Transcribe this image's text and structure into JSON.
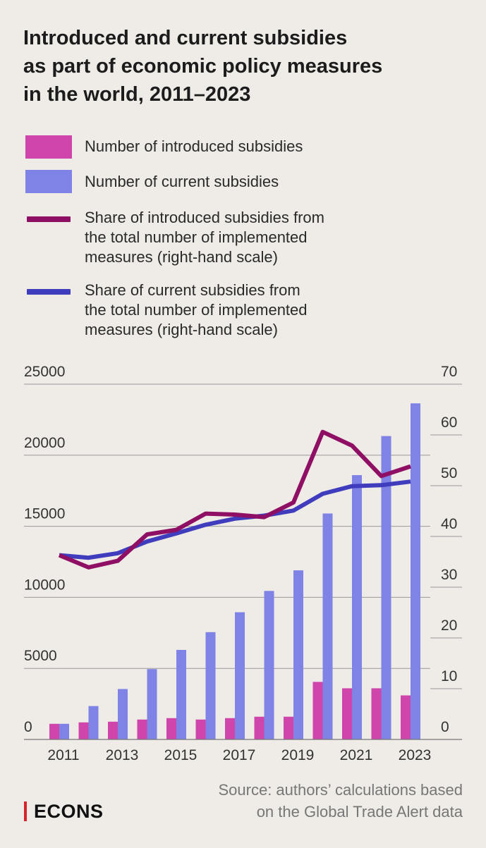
{
  "title": "Introduced and current subsidies as part of economic policy measures in the world, 2011–2023",
  "legend": [
    {
      "label": "Number of introduced subsidies",
      "color": "#cf45ab",
      "kind": "bar"
    },
    {
      "label": "Number of current subsidies",
      "color": "#7f83e6",
      "kind": "bar"
    },
    {
      "label": "Share of introduced subsidies from the total number of implemented measures (right-hand scale)",
      "color": "#8e0f63",
      "kind": "line"
    },
    {
      "label": "Share of current subsidies from the total number of implemented measures (right-hand scale)",
      "color": "#3f3dbd",
      "kind": "line"
    }
  ],
  "source": "Source: authors’ calculations based on the Global Trade Alert data",
  "logo": "ECONS",
  "chart_data": {
    "type": "bar",
    "categories": [
      "2011",
      "2012",
      "2013",
      "2014",
      "2015",
      "2016",
      "2017",
      "2018",
      "2019",
      "2020",
      "2021",
      "2022",
      "2023"
    ],
    "x_tick_labels": [
      "2011",
      "2013",
      "2015",
      "2017",
      "2019",
      "2021",
      "2023"
    ],
    "series": [
      {
        "name": "Number of introduced subsidies",
        "type": "bar",
        "axis": "left",
        "color": "#cf45ab",
        "values": [
          1100,
          1200,
          1250,
          1400,
          1500,
          1400,
          1500,
          1600,
          1600,
          4050,
          3600,
          3600,
          3100
        ]
      },
      {
        "name": "Number of current subsidies",
        "type": "bar",
        "axis": "left",
        "color": "#7f83e6",
        "values": [
          1100,
          2350,
          3550,
          4950,
          6300,
          7550,
          8950,
          10450,
          11900,
          15900,
          18600,
          21350,
          23650
        ]
      },
      {
        "name": "Share of introduced subsidies from the total number of implemented measures (right-hand scale)",
        "type": "line",
        "axis": "right",
        "color": "#8e0f63",
        "values": [
          36.3,
          33.9,
          35.2,
          40.4,
          41.3,
          44.5,
          44.3,
          43.8,
          46.7,
          60.6,
          57.9,
          51.9,
          53.8
        ]
      },
      {
        "name": "Share of current subsidies from the total number of implemented measures (right-hand scale)",
        "type": "line",
        "axis": "right",
        "color": "#3f3dbd",
        "values": [
          36.3,
          35.8,
          36.7,
          39.0,
          40.6,
          42.3,
          43.5,
          44.1,
          45.1,
          48.4,
          49.9,
          50.1,
          50.8
        ]
      }
    ],
    "ylim_left": [
      0,
      25000
    ],
    "yticks_left": [
      0,
      5000,
      10000,
      15000,
      20000,
      25000
    ],
    "ylim_right": [
      0,
      70
    ],
    "yticks_right": [
      0,
      10,
      20,
      30,
      40,
      50,
      60,
      70
    ],
    "grid": true,
    "legend_position": "top"
  }
}
